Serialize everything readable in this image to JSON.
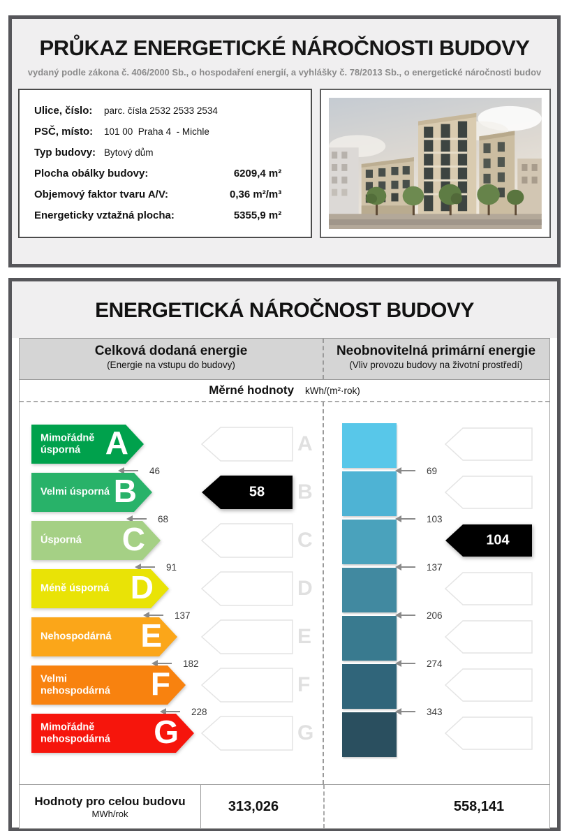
{
  "page": {
    "title": "PRŮKAZ ENERGETICKÉ NÁROČNOSTI BUDOVY",
    "subtitle": "vydaný podle zákona č. 406/2000 Sb., o hospodaření energií, a vyhlášky č. 78/2013 Sb., o energetické náročnosti budov"
  },
  "building_info": {
    "rows": [
      {
        "label": "Ulice, číslo:",
        "value": "parc. čísla 2532 2533 2534",
        "align": "left"
      },
      {
        "label": "PSČ, místo:",
        "value": "101 00  Praha 4  - Michle",
        "align": "left"
      },
      {
        "label": "Typ budovy:",
        "value": "Bytový dům",
        "align": "left"
      },
      {
        "label": "Plocha obálky budovy:",
        "value": "6209,4 m²",
        "align": "right"
      },
      {
        "label": "Objemový faktor tvaru A/V:",
        "value": "0,36 m²/m³",
        "align": "right"
      },
      {
        "label": "Energeticky vztažná plocha:",
        "value": "5355,9 m²",
        "align": "right"
      }
    ]
  },
  "energy_section": {
    "title": "ENERGETICKÁ NÁROČNOST BUDOVY",
    "columns": [
      {
        "title": "Celková dodaná energie",
        "subtitle": "(Energie na vstupu do budovy)"
      },
      {
        "title": "Neobnovitelná primární energie",
        "subtitle": "(Vliv provozu budovy na životní prostředí)"
      }
    ],
    "units_label": "Měrné hodnoty",
    "units": "kWh/(m²·rok)"
  },
  "chart_data": {
    "type": "table",
    "classes": [
      {
        "letter": "A",
        "label": "Mimořádně úsporná",
        "color": "#00a14c",
        "threshold": "46"
      },
      {
        "letter": "B",
        "label": "Velmi úsporná",
        "color": "#28b269",
        "threshold": "68"
      },
      {
        "letter": "C",
        "label": "Úsporná",
        "color": "#a5d085",
        "threshold": "91"
      },
      {
        "letter": "D",
        "label": "Méně úsporná",
        "color": "#e9e306",
        "threshold": "137"
      },
      {
        "letter": "E",
        "label": "Nehospodárná",
        "color": "#fba619",
        "threshold": "182"
      },
      {
        "letter": "F",
        "label": "Velmi nehospodárná",
        "color": "#f8820f",
        "threshold": "228"
      },
      {
        "letter": "G",
        "label": "Mimořádně nehospodárná",
        "color": "#f6150c",
        "threshold": null
      }
    ],
    "delivered_energy": {
      "class": "B",
      "value": "58"
    },
    "primary_energy": {
      "class": "C",
      "value": "104",
      "thresholds": [
        "69",
        "103",
        "137",
        "206",
        "274",
        "343"
      ],
      "colors": [
        "#58c7e9",
        "#4eb3d4",
        "#4aa2bc",
        "#4189a0",
        "#397a8f",
        "#30657a",
        "#2a4f5f"
      ]
    }
  },
  "totals": {
    "label": "Hodnoty pro celou budovu",
    "unit": "MWh/rok",
    "delivered": "313,026",
    "primary": "558,141"
  }
}
